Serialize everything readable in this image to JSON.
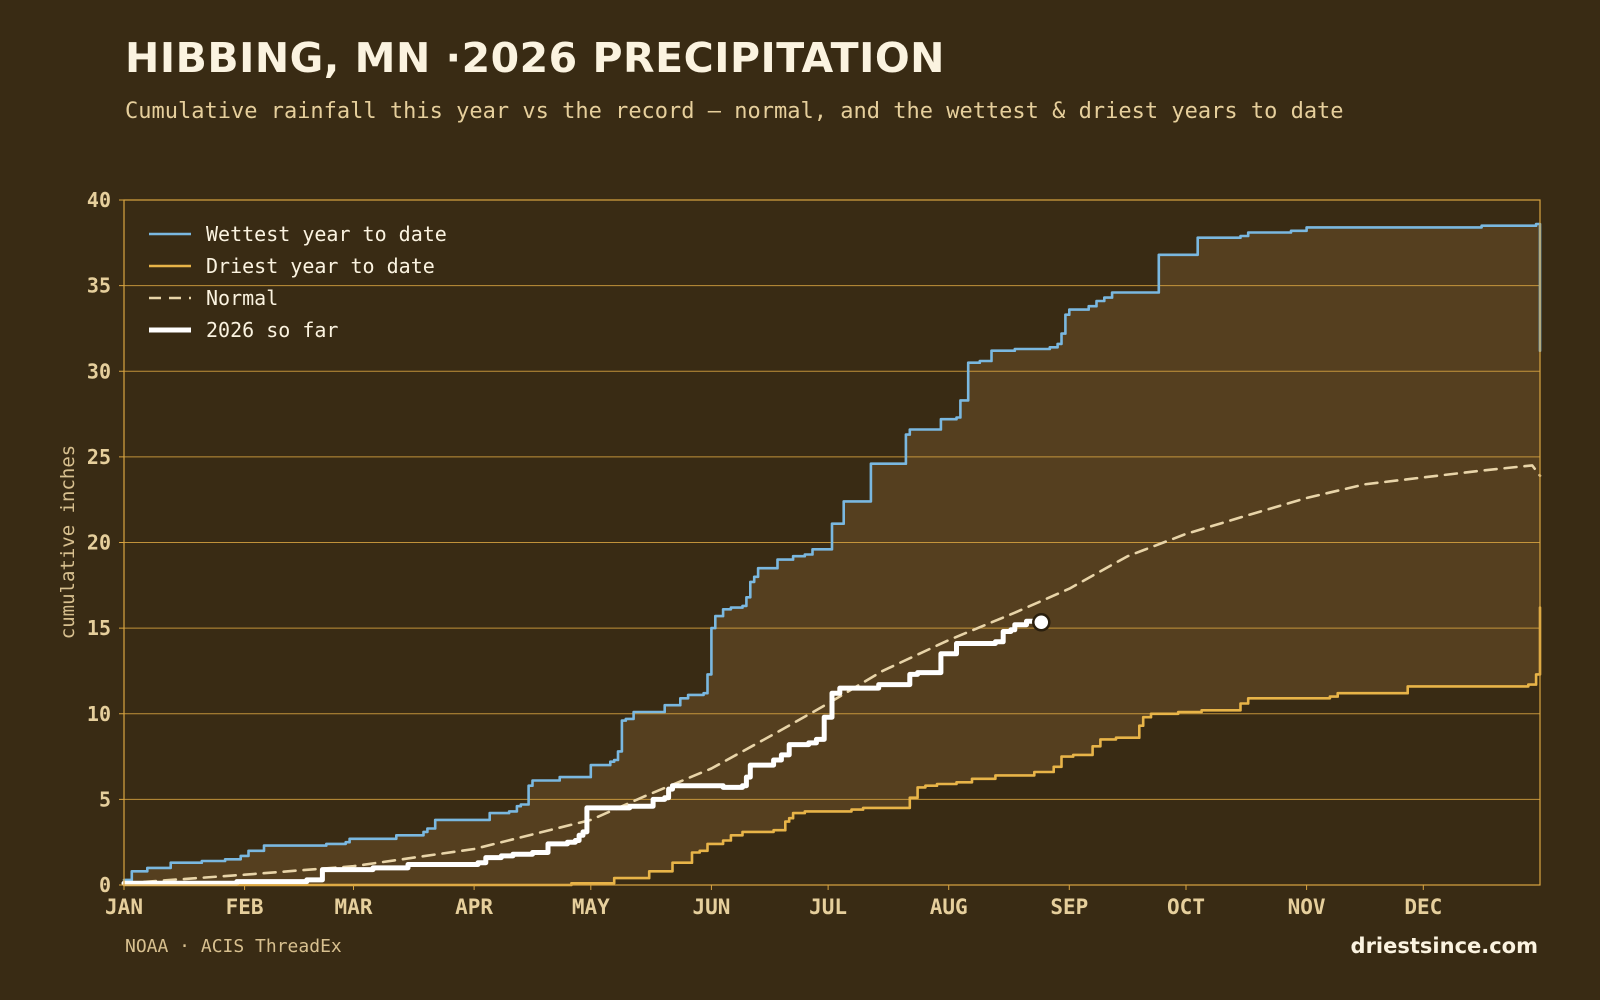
{
  "header": {
    "title": "HIBBING, MN ·2026 PRECIPITATION",
    "subtitle": "Cumulative rainfall this year vs the record — normal, and the wettest & driest years to date"
  },
  "footer": {
    "source": "NOAA · ACIS ThreadEx",
    "brand": "driestsince.com"
  },
  "colors": {
    "background": "#392b14",
    "band_fill": "#553f1f",
    "grid": "#d9a441",
    "wettest": "#7ab8e0",
    "driest": "#e8b448",
    "normal": "#e8d4a8",
    "current": "#ffffff"
  },
  "chart_data": {
    "type": "line",
    "title": "HIBBING, MN ·2026 PRECIPITATION",
    "subtitle": "Cumulative rainfall this year vs the record — normal, and the wettest & driest years to date",
    "xlabel": "",
    "ylabel": "cumulative inches",
    "x_unit": "day of year",
    "xlim": [
      1,
      365
    ],
    "ylim": [
      0,
      40
    ],
    "yticks": [
      0,
      5,
      10,
      15,
      20,
      25,
      30,
      35,
      40
    ],
    "month_ticks": [
      {
        "label": "JAN",
        "day": 1
      },
      {
        "label": "FEB",
        "day": 32
      },
      {
        "label": "MAR",
        "day": 60
      },
      {
        "label": "APR",
        "day": 91
      },
      {
        "label": "MAY",
        "day": 121
      },
      {
        "label": "JUN",
        "day": 152
      },
      {
        "label": "JUL",
        "day": 182
      },
      {
        "label": "AUG",
        "day": 213
      },
      {
        "label": "SEP",
        "day": 244
      },
      {
        "label": "OCT",
        "day": 274
      },
      {
        "label": "NOV",
        "day": 305
      },
      {
        "label": "DEC",
        "day": 335
      }
    ],
    "grid": "horizontal",
    "legend_position": "top-left",
    "series": [
      {
        "name": "Wettest year to date",
        "style": "step",
        "points": [
          [
            1,
            0.3
          ],
          [
            3,
            0.8
          ],
          [
            6,
            0.8
          ],
          [
            7,
            1.0
          ],
          [
            12,
            1.0
          ],
          [
            13,
            1.3
          ],
          [
            20,
            1.3
          ],
          [
            21,
            1.4
          ],
          [
            26,
            1.4
          ],
          [
            27,
            1.5
          ],
          [
            30,
            1.5
          ],
          [
            31,
            1.7
          ],
          [
            33,
            2.0
          ],
          [
            36,
            2.0
          ],
          [
            37,
            2.3
          ],
          [
            48,
            2.3
          ],
          [
            53,
            2.4
          ],
          [
            58,
            2.5
          ],
          [
            59,
            2.7
          ],
          [
            70,
            2.7
          ],
          [
            71,
            2.9
          ],
          [
            76,
            2.9
          ],
          [
            78,
            3.1
          ],
          [
            79,
            3.3
          ],
          [
            81,
            3.8
          ],
          [
            94,
            3.8
          ],
          [
            95,
            4.2
          ],
          [
            100,
            4.3
          ],
          [
            102,
            4.6
          ],
          [
            103,
            4.7
          ],
          [
            105,
            5.8
          ],
          [
            106,
            6.1
          ],
          [
            112,
            6.1
          ],
          [
            113,
            6.3
          ],
          [
            120,
            6.3
          ],
          [
            121,
            7.0
          ],
          [
            125,
            7.0
          ],
          [
            126,
            7.2
          ],
          [
            127,
            7.3
          ],
          [
            128,
            7.8
          ],
          [
            129,
            9.6
          ],
          [
            130,
            9.7
          ],
          [
            132,
            10.1
          ],
          [
            139,
            10.1
          ],
          [
            140,
            10.5
          ],
          [
            143,
            10.5
          ],
          [
            144,
            10.9
          ],
          [
            146,
            11.1
          ],
          [
            150,
            11.2
          ],
          [
            151,
            12.3
          ],
          [
            152,
            15.0
          ],
          [
            153,
            15.7
          ],
          [
            154,
            15.7
          ],
          [
            155,
            16.1
          ],
          [
            157,
            16.2
          ],
          [
            160,
            16.3
          ],
          [
            161,
            16.8
          ],
          [
            162,
            17.7
          ],
          [
            163,
            18.0
          ],
          [
            164,
            18.5
          ],
          [
            167,
            18.5
          ],
          [
            169,
            19.0
          ],
          [
            172,
            19.0
          ],
          [
            173,
            19.2
          ],
          [
            176,
            19.3
          ],
          [
            178,
            19.6
          ],
          [
            182,
            19.6
          ],
          [
            183,
            21.1
          ],
          [
            185,
            21.1
          ],
          [
            186,
            22.4
          ],
          [
            192,
            22.4
          ],
          [
            193,
            24.6
          ],
          [
            201,
            24.6
          ],
          [
            202,
            26.3
          ],
          [
            203,
            26.6
          ],
          [
            210,
            26.6
          ],
          [
            211,
            27.2
          ],
          [
            215,
            27.3
          ],
          [
            216,
            28.3
          ],
          [
            217,
            28.3
          ],
          [
            218,
            30.5
          ],
          [
            221,
            30.6
          ],
          [
            224,
            31.2
          ],
          [
            230,
            31.3
          ],
          [
            239,
            31.4
          ],
          [
            241,
            31.6
          ],
          [
            242,
            32.2
          ],
          [
            243,
            33.3
          ],
          [
            244,
            33.6
          ],
          [
            247,
            33.6
          ],
          [
            249,
            33.8
          ],
          [
            251,
            34.1
          ],
          [
            253,
            34.3
          ],
          [
            255,
            34.6
          ],
          [
            264,
            34.6
          ],
          [
            267,
            36.8
          ],
          [
            275,
            36.8
          ],
          [
            277,
            37.8
          ],
          [
            288,
            37.9
          ],
          [
            290,
            38.1
          ],
          [
            301,
            38.2
          ],
          [
            305,
            38.4
          ],
          [
            328,
            38.4
          ],
          [
            341,
            38.4
          ],
          [
            350,
            38.5
          ],
          [
            358,
            38.5
          ],
          [
            364,
            38.6
          ],
          [
            365,
            31.2
          ]
        ]
      },
      {
        "name": "Driest year to date",
        "style": "step",
        "points": [
          [
            1,
            0
          ],
          [
            115,
            0
          ],
          [
            116,
            0.1
          ],
          [
            125,
            0.1
          ],
          [
            127,
            0.4
          ],
          [
            133,
            0.4
          ],
          [
            136,
            0.8
          ],
          [
            140,
            0.8
          ],
          [
            142,
            1.3
          ],
          [
            145,
            1.3
          ],
          [
            147,
            1.9
          ],
          [
            149,
            2.0
          ],
          [
            151,
            2.4
          ],
          [
            155,
            2.6
          ],
          [
            157,
            2.9
          ],
          [
            160,
            3.1
          ],
          [
            168,
            3.2
          ],
          [
            171,
            3.7
          ],
          [
            172,
            3.9
          ],
          [
            173,
            4.2
          ],
          [
            176,
            4.3
          ],
          [
            188,
            4.4
          ],
          [
            191,
            4.5
          ],
          [
            199,
            4.5
          ],
          [
            203,
            5.1
          ],
          [
            205,
            5.7
          ],
          [
            207,
            5.8
          ],
          [
            210,
            5.9
          ],
          [
            215,
            6.0
          ],
          [
            219,
            6.2
          ],
          [
            223,
            6.2
          ],
          [
            225,
            6.4
          ],
          [
            231,
            6.4
          ],
          [
            235,
            6.6
          ],
          [
            240,
            6.9
          ],
          [
            242,
            7.5
          ],
          [
            243,
            7.5
          ],
          [
            245,
            7.6
          ],
          [
            248,
            7.6
          ],
          [
            250,
            8.1
          ],
          [
            252,
            8.5
          ],
          [
            256,
            8.6
          ],
          [
            260,
            8.6
          ],
          [
            262,
            9.3
          ],
          [
            263,
            9.8
          ],
          [
            265,
            10.0
          ],
          [
            270,
            10.0
          ],
          [
            272,
            10.1
          ],
          [
            278,
            10.2
          ],
          [
            285,
            10.2
          ],
          [
            288,
            10.6
          ],
          [
            290,
            10.9
          ],
          [
            311,
            11.0
          ],
          [
            313,
            11.2
          ],
          [
            330,
            11.2
          ],
          [
            331,
            11.6
          ],
          [
            344,
            11.6
          ],
          [
            362,
            11.7
          ],
          [
            364,
            12.3
          ],
          [
            365,
            16.2
          ]
        ]
      },
      {
        "name": "Normal",
        "style": "dashed",
        "points": [
          [
            1,
            0.1
          ],
          [
            32,
            0.6
          ],
          [
            60,
            1.1
          ],
          [
            91,
            2.1
          ],
          [
            121,
            3.8
          ],
          [
            135,
            5.2
          ],
          [
            152,
            6.8
          ],
          [
            168,
            8.8
          ],
          [
            182,
            10.6
          ],
          [
            196,
            12.5
          ],
          [
            213,
            14.3
          ],
          [
            230,
            15.9
          ],
          [
            244,
            17.3
          ],
          [
            259,
            19.2
          ],
          [
            274,
            20.5
          ],
          [
            290,
            21.6
          ],
          [
            305,
            22.6
          ],
          [
            320,
            23.4
          ],
          [
            335,
            23.8
          ],
          [
            350,
            24.2
          ],
          [
            363,
            24.5
          ],
          [
            365,
            23.9
          ]
        ]
      },
      {
        "name": "2026 so far",
        "style": "step-thick",
        "points": [
          [
            1,
            0.1
          ],
          [
            30,
            0.2
          ],
          [
            47,
            0.2
          ],
          [
            48,
            0.3
          ],
          [
            52,
            0.9
          ],
          [
            60,
            0.9
          ],
          [
            65,
            1.0
          ],
          [
            72,
            1.0
          ],
          [
            74,
            1.2
          ],
          [
            90,
            1.2
          ],
          [
            92,
            1.3
          ],
          [
            94,
            1.6
          ],
          [
            98,
            1.7
          ],
          [
            101,
            1.8
          ],
          [
            106,
            1.9
          ],
          [
            110,
            2.4
          ],
          [
            115,
            2.5
          ],
          [
            117,
            2.6
          ],
          [
            118,
            2.9
          ],
          [
            119,
            3.1
          ],
          [
            120,
            4.5
          ],
          [
            131,
            4.6
          ],
          [
            136,
            4.6
          ],
          [
            137,
            5.0
          ],
          [
            140,
            5.1
          ],
          [
            141,
            5.6
          ],
          [
            142,
            5.8
          ],
          [
            150,
            5.8
          ],
          [
            155,
            5.7
          ],
          [
            160,
            5.8
          ],
          [
            161,
            6.3
          ],
          [
            162,
            7.0
          ],
          [
            166,
            7.0
          ],
          [
            168,
            7.3
          ],
          [
            170,
            7.6
          ],
          [
            172,
            8.2
          ],
          [
            177,
            8.3
          ],
          [
            179,
            8.5
          ],
          [
            181,
            9.8
          ],
          [
            183,
            11.2
          ],
          [
            185,
            11.5
          ],
          [
            193,
            11.5
          ],
          [
            195,
            11.7
          ],
          [
            200,
            11.7
          ],
          [
            203,
            12.3
          ],
          [
            205,
            12.4
          ],
          [
            209,
            12.4
          ],
          [
            211,
            13.5
          ],
          [
            213,
            13.5
          ],
          [
            215,
            14.1
          ],
          [
            225,
            14.2
          ],
          [
            227,
            14.8
          ],
          [
            229,
            14.9
          ],
          [
            230,
            15.2
          ],
          [
            233,
            15.4
          ],
          [
            235,
            15.4
          ]
        ],
        "end_marker": [
          235,
          15.4
        ]
      }
    ]
  }
}
